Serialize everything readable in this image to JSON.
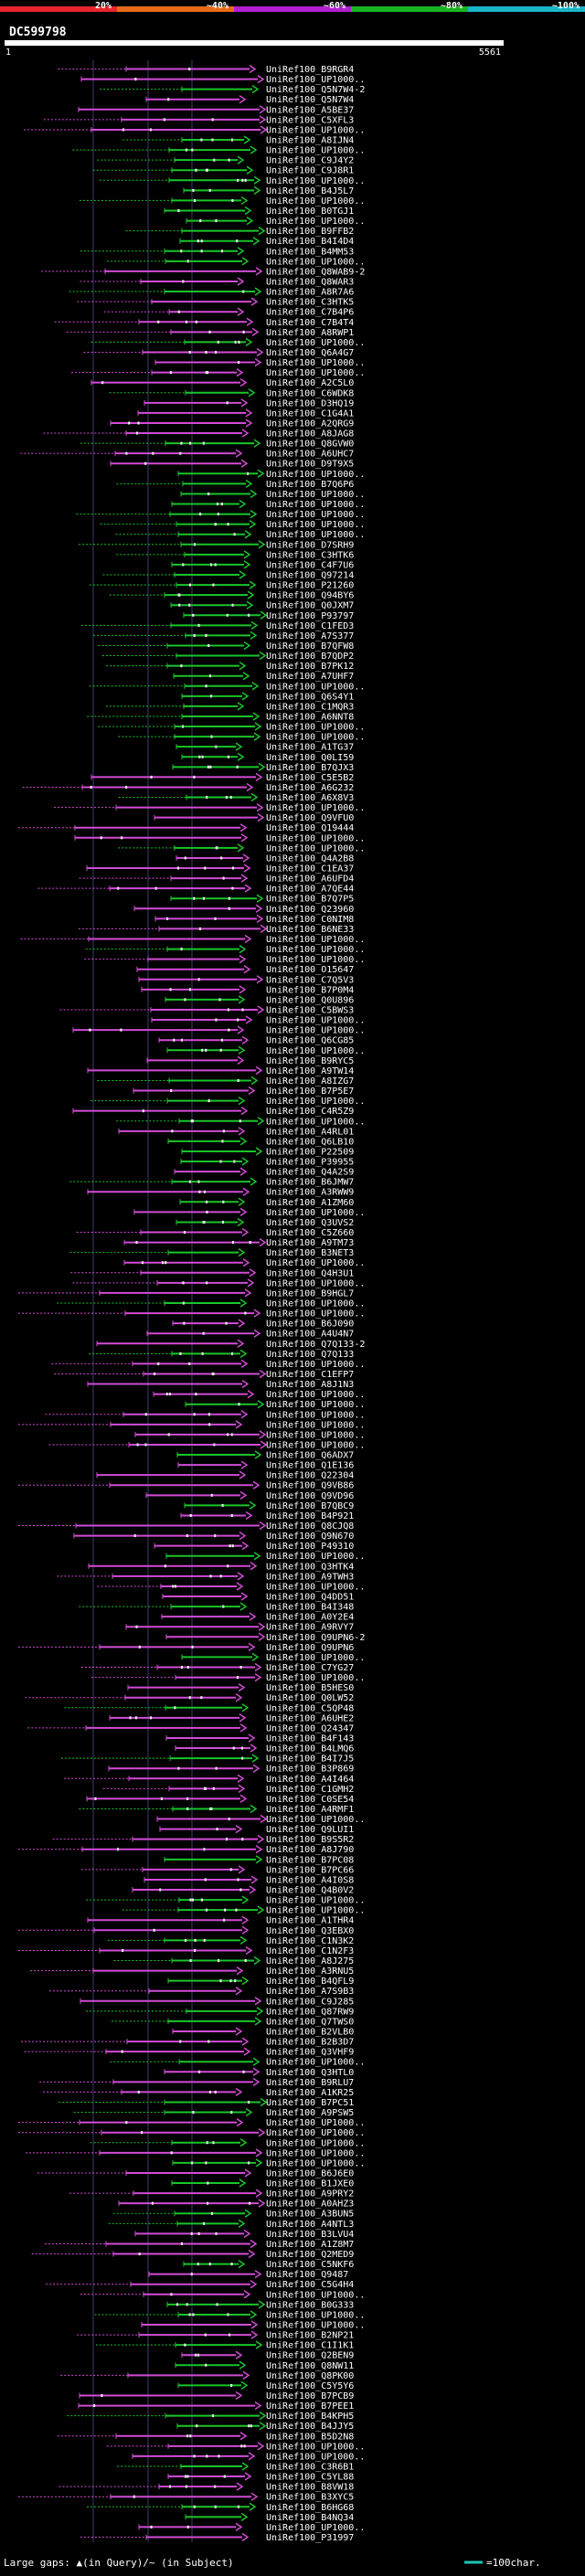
{
  "legend": {
    "segments": [
      {
        "label": "20%",
        "color": "#e8252c"
      },
      {
        "label": "~40%",
        "color": "#e86b1a"
      },
      {
        "label": "~60%",
        "color": "#b21fd1"
      },
      {
        "label": "~80%",
        "color": "#19b521"
      },
      {
        "label": "~100%",
        "color": "#19b5c9"
      }
    ]
  },
  "query": {
    "name": "DC599798",
    "start_label": "1",
    "end_label": "5561"
  },
  "footer": {
    "gaps_text": "Large gaps: ▲(in Query)/~ (in Subject)",
    "scale_text": "=100char."
  },
  "hits": [
    "UniRef100_B9RGR4",
    "UniRef100_UP1000..",
    "UniRef100_Q5N7W4-2",
    "UniRef100_Q5N7W4",
    "UniRef100_A5BE37",
    "UniRef100_C5XFL3",
    "UniRef100_UP1000..",
    "UniRef100_A8IJN4",
    "UniRef100_UP1000..",
    "UniRef100_C9J4Y2",
    "UniRef100_C9J8R1",
    "UniRef100_UP1000..",
    "UniRef100_B4J5L7",
    "UniRef100_UP1000..",
    "UniRef100_B0TGJ1",
    "UniRef100_UP1000..",
    "UniRef100_B9FFB2",
    "UniRef100_B4I4D4",
    "UniRef100_B4MM53",
    "UniRef100_UP1000..",
    "UniRef100_Q8WAB9-2",
    "UniRef100_Q8WAR3",
    "UniRef100_A8R7A6",
    "UniRef100_C3HTK5",
    "UniRef100_C7B4P6",
    "UniRef100_C7B4T4",
    "UniRef100_A8RWP1",
    "UniRef100_UP1000..",
    "UniRef100_Q6A4G7",
    "UniRef100_UP1000..",
    "UniRef100_UP1000..",
    "UniRef100_A2C5L0",
    "UniRef100_C6WDK8",
    "UniRef100_D3HQ19",
    "UniRef100_C1G4A1",
    "UniRef100_A2QRG9",
    "UniRef100_A8JAG8",
    "UniRef100_Q8GVW0",
    "UniRef100_A6UHC7",
    "UniRef100_D9T9X5",
    "UniRef100_UP1000..",
    "UniRef100_B7Q6P6",
    "UniRef100_UP1000..",
    "UniRef100_UP1000..",
    "UniRef100_UP1000..",
    "UniRef100_UP1000..",
    "UniRef100_UP1000..",
    "UniRef100_D7SRH9",
    "UniRef100_C3HTK6",
    "UniRef100_C4F7U6",
    "UniRef100_Q97214",
    "UniRef100_P21260",
    "UniRef100_Q94BY6",
    "UniRef100_Q0JXM7",
    "UniRef100_P93797",
    "UniRef100_C1FED3",
    "UniRef100_A7S377",
    "UniRef100_B7QFW8",
    "UniRef100_B7QDP2",
    "UniRef100_B7PK12",
    "UniRef100_A7UHF7",
    "UniRef100_UP1000..",
    "UniRef100_Q6S4Y1",
    "UniRef100_C1MQR3",
    "UniRef100_A6NNT8",
    "UniRef100_UP1000..",
    "UniRef100_UP1000..",
    "UniRef100_A1TG37",
    "UniRef100_Q0LI59",
    "UniRef100_B7QJX3",
    "UniRef100_C5E5B2",
    "UniRef100_A6G232",
    "UniRef100_A6X8V3",
    "UniRef100_UP1000..",
    "UniRef100_Q9VFU0",
    "UniRef100_Q19444",
    "UniRef100_UP1000..",
    "UniRef100_UP1000..",
    "UniRef100_Q4A2B8",
    "UniRef100_C1EA37",
    "UniRef100_A6UFD4",
    "UniRef100_A7QE44",
    "UniRef100_B7Q7P5",
    "UniRef100_Q23960",
    "UniRef100_C0NIM8",
    "UniRef100_B6NE33",
    "UniRef100_UP1000..",
    "UniRef100_UP1000..",
    "UniRef100_UP1000..",
    "UniRef100_O15647",
    "UniRef100_C7Q5V3",
    "UniRef100_B7P0M4",
    "UniRef100_Q0U896",
    "UniRef100_C5BWS3",
    "UniRef100_UP1000..",
    "UniRef100_UP1000..",
    "UniRef100_Q6CG85",
    "UniRef100_UP1000..",
    "UniRef100_B9RYC5",
    "UniRef100_A9TW14",
    "UniRef100_A8IZG7",
    "UniRef100_B7P5E7",
    "UniRef100_UP1000..",
    "UniRef100_C4R5Z9",
    "UniRef100_UP1000..",
    "UniRef100_A4RL01",
    "UniRef100_Q6LB10",
    "UniRef100_P22509",
    "UniRef100_P39955",
    "UniRef100_Q4A2S9",
    "UniRef100_B6JMW7",
    "UniRef100_A3RWW9",
    "UniRef100_A1ZM60",
    "UniRef100_UP1000..",
    "UniRef100_Q3UVS2",
    "UniRef100_C5Z660",
    "UniRef100_A9TM73",
    "UniRef100_B3NET3",
    "UniRef100_UP1000..",
    "UniRef100_Q4H3U1",
    "UniRef100_UP1000..",
    "UniRef100_B9HGL7",
    "UniRef100_UP1000..",
    "UniRef100_UP1000..",
    "UniRef100_B6J090",
    "UniRef100_A4U4N7",
    "UniRef100_Q7Q133-2",
    "UniRef100_Q7Q133",
    "UniRef100_UP1000..",
    "UniRef100_C1EFP7",
    "UniRef100_A8J1N3",
    "UniRef100_UP1000..",
    "UniRef100_UP1000..",
    "UniRef100_UP1000..",
    "UniRef100_UP1000..",
    "UniRef100_UP1000..",
    "UniRef100_UP1000..",
    "UniRef100_Q6ADX7",
    "UniRef100_Q1E136",
    "UniRef100_Q22304",
    "UniRef100_Q9VB86",
    "UniRef100_Q9VD96",
    "UniRef100_B7QBC9",
    "UniRef100_B4P921",
    "UniRef100_Q8CJQ8",
    "UniRef100_Q9N670",
    "UniRef100_P49310",
    "UniRef100_UP1000..",
    "UniRef100_Q3HTK4",
    "UniRef100_A9TWH3",
    "UniRef100_UP1000..",
    "UniRef100_Q4DD51",
    "UniRef100_B4I348",
    "UniRef100_A0Y2E4",
    "UniRef100_A9RVY7",
    "UniRef100_Q9UPN6-2",
    "UniRef100_Q9UPN6",
    "UniRef100_UP1000..",
    "UniRef100_C7YG27",
    "UniRef100_UP1000..",
    "UniRef100_B5HES0",
    "UniRef100_Q0LW52",
    "UniRef100_C5QP48",
    "UniRef100_A6UHE2",
    "UniRef100_Q24347",
    "UniRef100_B4F143",
    "UniRef100_B4LMQ6",
    "UniRef100_B4I7J5",
    "UniRef100_B3P869",
    "UniRef100_A4I464",
    "UniRef100_C1GMH2",
    "UniRef100_C0SE54",
    "UniRef100_A4RMF1",
    "UniRef100_UP1000..",
    "UniRef100_Q9LUI1",
    "UniRef100_B9S5R2",
    "UniRef100_A8J790",
    "UniRef100_B7PC08",
    "UniRef100_B7PC66",
    "UniRef100_A4I0S8",
    "UniRef100_Q4B0V2",
    "UniRef100_UP1000..",
    "UniRef100_UP1000..",
    "UniRef100_A1THR4",
    "UniRef100_Q3EBX0",
    "UniRef100_C1N3K2",
    "UniRef100_C1N2F3",
    "UniRef100_A8J275",
    "UniRef100_A3RNU5",
    "UniRef100_B4QFL9",
    "UniRef100_A7S9B3",
    "UniRef100_C9J285",
    "UniRef100_Q87RW9",
    "UniRef100_Q7TWS0",
    "UniRef100_B2VLB0",
    "UniRef100_B2B3D7",
    "UniRef100_Q3VHF9",
    "UniRef100_UP1000..",
    "UniRef100_Q3HTL0",
    "UniRef100_B9RLU7",
    "UniRef100_A1KR25",
    "UniRef100_B7PC51",
    "UniRef100_A9PSW5",
    "UniRef100_UP1000..",
    "UniRef100_UP1000..",
    "UniRef100_UP1000..",
    "UniRef100_UP1000..",
    "UniRef100_UP1000..",
    "UniRef100_B6J6E0",
    "UniRef100_B1JXE0",
    "UniRef100_A9PRY2",
    "UniRef100_A0AHZ3",
    "UniRef100_A3BUN5",
    "UniRef100_A4NTL3",
    "UniRef100_B3LVU4",
    "UniRef100_A1Z8M7",
    "UniRef100_Q2MED9",
    "UniRef100_C5NKF6",
    "UniRef100_Q9487",
    "UniRef100_C5G4H4",
    "UniRef100_UP1000..",
    "UniRef100_B0G333",
    "UniRef100_UP1000..",
    "UniRef100_UP1000..",
    "UniRef100_B2NP21",
    "UniRef100_C1I1K1",
    "UniRef100_Q2BEN9",
    "UniRef100_Q8NW11",
    "UniRef100_Q8PK00",
    "UniRef100_C5Y5Y6",
    "UniRef100_B7PCB9",
    "UniRef100_B7PEE1",
    "UniRef100_B4KPH5",
    "UniRef100_B4JJY5",
    "UniRef100_B5D2N8",
    "UniRef100_UP1000..",
    "UniRef100_UP1000..",
    "UniRef100_C3R6B1",
    "UniRef100_C5YL88",
    "UniRef100_B8VW18",
    "UniRef100_B3XYC5",
    "UniRef100_B6HG68",
    "UniRef100_B4NQ34",
    "UniRef100_UP1000..",
    "UniRef100_P31997"
  ]
}
